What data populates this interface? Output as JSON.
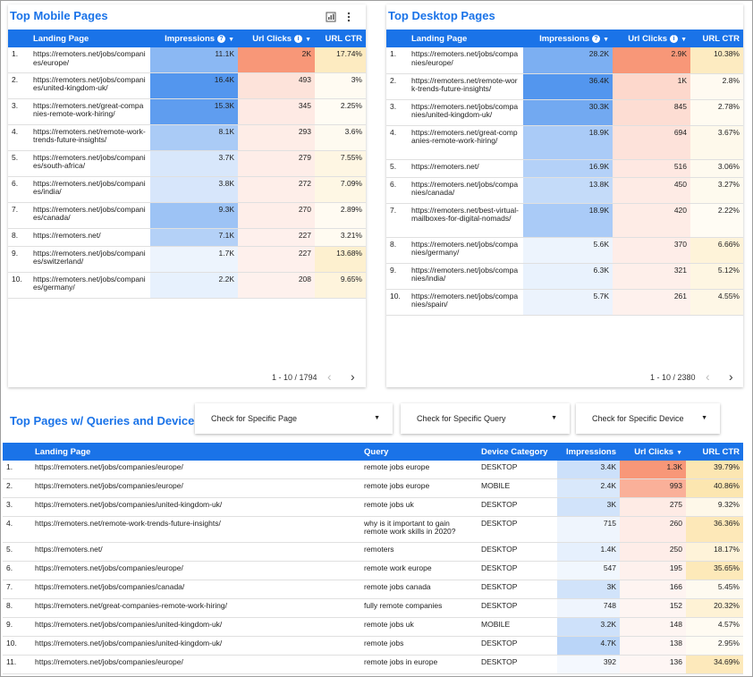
{
  "mobile": {
    "title": "Top Mobile Pages",
    "headers": [
      "Landing Page",
      "Impressions",
      "Url Clicks",
      "URL CTR"
    ],
    "rows": [
      [
        "1.",
        "https://remoters.net/jobs/companies/europe/",
        "11.1K",
        "2K",
        "17.74%"
      ],
      [
        "2.",
        "https://remoters.net/jobs/companies/united-kingdom-uk/",
        "16.4K",
        "493",
        "3%"
      ],
      [
        "3.",
        "https://remoters.net/great-companies-remote-work-hiring/",
        "15.3K",
        "345",
        "2.25%"
      ],
      [
        "4.",
        "https://remoters.net/remote-work-trends-future-insights/",
        "8.1K",
        "293",
        "3.6%"
      ],
      [
        "5.",
        "https://remoters.net/jobs/companies/south-africa/",
        "3.7K",
        "279",
        "7.55%"
      ],
      [
        "6.",
        "https://remoters.net/jobs/companies/india/",
        "3.8K",
        "272",
        "7.09%"
      ],
      [
        "7.",
        "https://remoters.net/jobs/companies/canada/",
        "9.3K",
        "270",
        "2.89%"
      ],
      [
        "8.",
        "https://remoters.net/",
        "7.1K",
        "227",
        "3.21%"
      ],
      [
        "9.",
        "https://remoters.net/jobs/companies/switzerland/",
        "1.7K",
        "227",
        "13.68%"
      ],
      [
        "10.",
        "https://remoters.net/jobs/companies/germany/",
        "2.2K",
        "208",
        "9.65%"
      ]
    ],
    "pager": "1 - 10 / 1794"
  },
  "desktop": {
    "title": "Top Desktop Pages",
    "headers": [
      "Landing Page",
      "Impressions",
      "Url Clicks",
      "URL CTR"
    ],
    "rows": [
      [
        "1.",
        "https://remoters.net/jobs/companies/europe/",
        "28.2K",
        "2.9K",
        "10.38%"
      ],
      [
        "2.",
        "https://remoters.net/remote-work-trends-future-insights/",
        "36.4K",
        "1K",
        "2.8%"
      ],
      [
        "3.",
        "https://remoters.net/jobs/companies/united-kingdom-uk/",
        "30.3K",
        "845",
        "2.78%"
      ],
      [
        "4.",
        "https://remoters.net/great-companies-remote-work-hiring/",
        "18.9K",
        "694",
        "3.67%"
      ],
      [
        "5.",
        "https://remoters.net/",
        "16.9K",
        "516",
        "3.06%"
      ],
      [
        "6.",
        "https://remoters.net/jobs/companies/canada/",
        "13.8K",
        "450",
        "3.27%"
      ],
      [
        "7.",
        "https://remoters.net/best-virtual-mailboxes-for-digital-nomads/",
        "18.9K",
        "420",
        "2.22%"
      ],
      [
        "8.",
        "https://remoters.net/jobs/companies/germany/",
        "5.6K",
        "370",
        "6.66%"
      ],
      [
        "9.",
        "https://remoters.net/jobs/companies/india/",
        "6.3K",
        "321",
        "5.12%"
      ],
      [
        "10.",
        "https://remoters.net/jobs/companies/spain/",
        "5.7K",
        "261",
        "4.55%"
      ]
    ],
    "pager": "1 - 10 / 2380"
  },
  "queries": {
    "title": "Top Pages w/ Queries and Device",
    "filters": [
      "Check for Specific Page",
      "Check for Specific Query",
      "Check for Specific Device"
    ],
    "headers": [
      "Landing Page",
      "Query",
      "Device Category",
      "Impressions",
      "Url Clicks",
      "URL CTR"
    ],
    "rows": [
      [
        "1.",
        "https://remoters.net/jobs/companies/europe/",
        "remote jobs europe",
        "DESKTOP",
        "3.4K",
        "1.3K",
        "39.79%"
      ],
      [
        "2.",
        "https://remoters.net/jobs/companies/europe/",
        "remote jobs europe",
        "MOBILE",
        "2.4K",
        "993",
        "40.86%"
      ],
      [
        "3.",
        "https://remoters.net/jobs/companies/united-kingdom-uk/",
        "remote jobs uk",
        "DESKTOP",
        "3K",
        "275",
        "9.32%"
      ],
      [
        "4.",
        "https://remoters.net/remote-work-trends-future-insights/",
        "why is it important to gain remote work skills in 2020?",
        "DESKTOP",
        "715",
        "260",
        "36.36%"
      ],
      [
        "5.",
        "https://remoters.net/",
        "remoters",
        "DESKTOP",
        "1.4K",
        "250",
        "18.17%"
      ],
      [
        "6.",
        "https://remoters.net/jobs/companies/europe/",
        "remote work europe",
        "DESKTOP",
        "547",
        "195",
        "35.65%"
      ],
      [
        "7.",
        "https://remoters.net/jobs/companies/canada/",
        "remote jobs canada",
        "DESKTOP",
        "3K",
        "166",
        "5.45%"
      ],
      [
        "8.",
        "https://remoters.net/great-companies-remote-work-hiring/",
        "fully remote companies",
        "DESKTOP",
        "748",
        "152",
        "20.32%"
      ],
      [
        "9.",
        "https://remoters.net/jobs/companies/united-kingdom-uk/",
        "remote jobs uk",
        "MOBILE",
        "3.2K",
        "148",
        "4.57%"
      ],
      [
        "10.",
        "https://remoters.net/jobs/companies/united-kingdom-uk/",
        "remote jobs",
        "DESKTOP",
        "4.7K",
        "138",
        "2.95%"
      ],
      [
        "11.",
        "https://remoters.net/jobs/companies/europe/",
        "remote jobs in europe",
        "DESKTOP",
        "392",
        "136",
        "34.69%"
      ]
    ]
  },
  "icons": {
    "chart": "chart-icon",
    "more": "more-vert-icon",
    "info": "info-icon",
    "sort": "sort-desc-icon",
    "prev": "chevron-left-icon",
    "next": "chevron-right-icon",
    "caret": "caret-down-icon"
  },
  "colors": {
    "header": "#1a73e8",
    "title": "#1a73e8",
    "impressions": "#1a73e8",
    "clicks": "#f4511e",
    "ctr": "#f9c74f"
  }
}
